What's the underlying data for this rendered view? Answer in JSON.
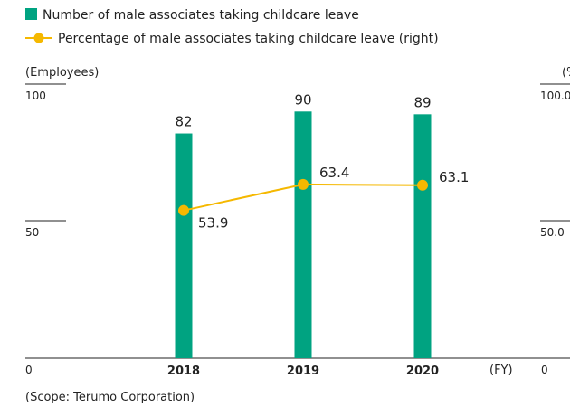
{
  "chart_data": {
    "type": "bar",
    "categories": [
      "2018",
      "2019",
      "2020"
    ],
    "bar_series": {
      "name": "Number of male associates taking childcare leave",
      "values": [
        82,
        90,
        89
      ],
      "color": "#00a381",
      "axis": "left"
    },
    "line_series": {
      "name": "Percentage of male associates taking childcare leave (right)",
      "values": [
        53.9,
        63.4,
        63.1
      ],
      "labels": [
        "53.9",
        "63.4",
        "63.1"
      ],
      "color": "#f5b800",
      "axis": "right"
    },
    "left_axis": {
      "unit": "(Employees)",
      "ylim": [
        0,
        100
      ],
      "ticks": [
        "0",
        "50",
        "100"
      ]
    },
    "right_axis": {
      "unit": "(%)",
      "ylim": [
        0,
        100
      ],
      "ticks": [
        "0",
        "50.0",
        "100.0"
      ]
    },
    "xlabel": "(FY)",
    "footnote": "(Scope: Terumo Corporation)"
  }
}
